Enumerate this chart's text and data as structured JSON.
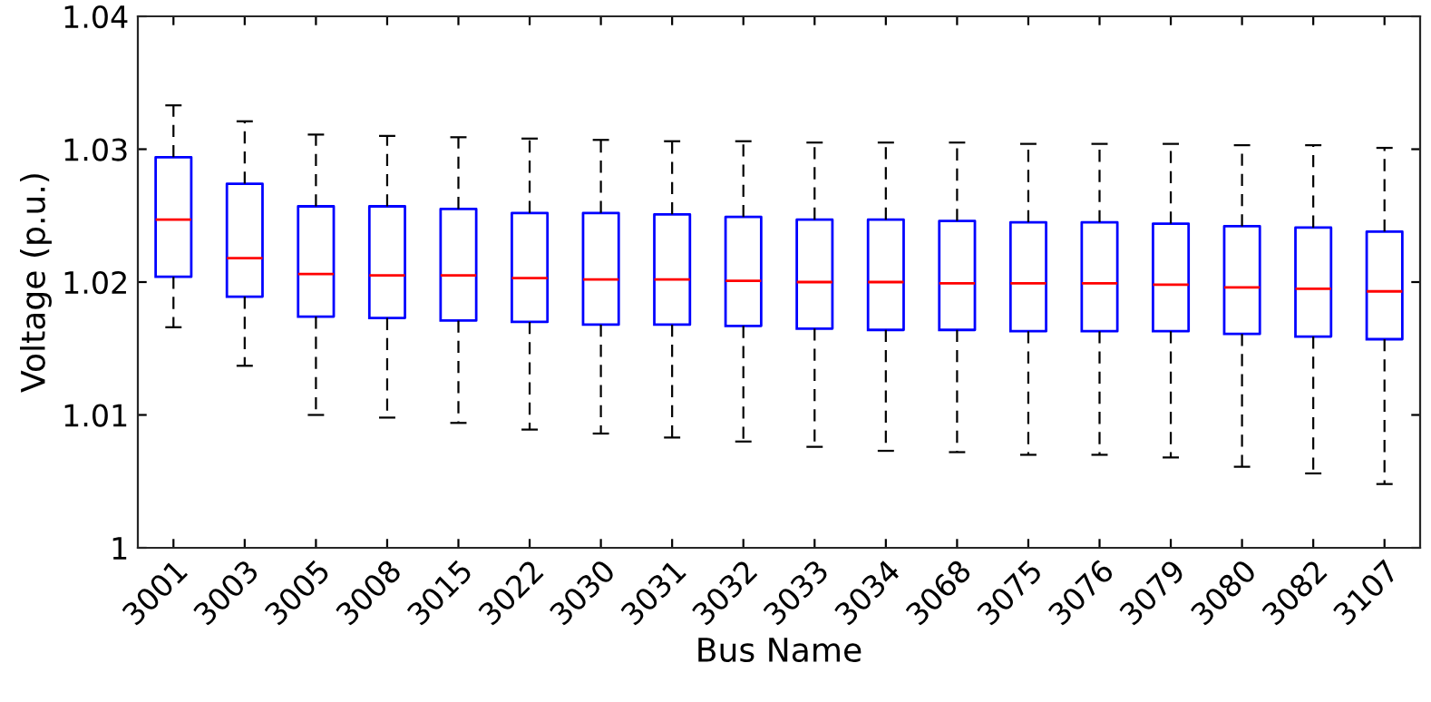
{
  "chart_data": {
    "type": "box",
    "xlabel": "Bus Name",
    "ylabel": "Voltage (p.u.)",
    "categories": [
      "3001",
      "3003",
      "3005",
      "3008",
      "3015",
      "3022",
      "3030",
      "3031",
      "3032",
      "3033",
      "3034",
      "3068",
      "3075",
      "3076",
      "3079",
      "3080",
      "3082",
      "3107"
    ],
    "ylim": [
      1,
      1.04
    ],
    "yticks": [
      1,
      1.01,
      1.02,
      1.03,
      1.04
    ],
    "grid": false,
    "line_style": "dashed",
    "series": [
      {
        "color": "#0000ff",
        "boxes": [
          {
            "low": 1.0166,
            "q1": 1.0204,
            "median": 1.0247,
            "q3": 1.0294,
            "high": 1.0333
          },
          {
            "low": 1.0137,
            "q1": 1.0189,
            "median": 1.0218,
            "q3": 1.0274,
            "high": 1.0321
          },
          {
            "low": 1.01,
            "q1": 1.0174,
            "median": 1.0206,
            "q3": 1.0257,
            "high": 1.0311
          },
          {
            "low": 1.0098,
            "q1": 1.0173,
            "median": 1.0205,
            "q3": 1.0257,
            "high": 1.031
          },
          {
            "low": 1.0094,
            "q1": 1.0171,
            "median": 1.0205,
            "q3": 1.0255,
            "high": 1.0309
          },
          {
            "low": 1.0089,
            "q1": 1.017,
            "median": 1.0203,
            "q3": 1.0252,
            "high": 1.0308
          },
          {
            "low": 1.0086,
            "q1": 1.0168,
            "median": 1.0202,
            "q3": 1.0252,
            "high": 1.0307
          },
          {
            "low": 1.0083,
            "q1": 1.0168,
            "median": 1.0202,
            "q3": 1.0251,
            "high": 1.0306
          },
          {
            "low": 1.008,
            "q1": 1.0167,
            "median": 1.0201,
            "q3": 1.0249,
            "high": 1.0306
          },
          {
            "low": 1.0076,
            "q1": 1.0165,
            "median": 1.02,
            "q3": 1.0247,
            "high": 1.0305
          },
          {
            "low": 1.0073,
            "q1": 1.0164,
            "median": 1.02,
            "q3": 1.0247,
            "high": 1.0305
          },
          {
            "low": 1.0072,
            "q1": 1.0164,
            "median": 1.0199,
            "q3": 1.0246,
            "high": 1.0305
          },
          {
            "low": 1.007,
            "q1": 1.0163,
            "median": 1.0199,
            "q3": 1.0245,
            "high": 1.0304
          },
          {
            "low": 1.007,
            "q1": 1.0163,
            "median": 1.0199,
            "q3": 1.0245,
            "high": 1.0304
          },
          {
            "low": 1.0068,
            "q1": 1.0163,
            "median": 1.0198,
            "q3": 1.0244,
            "high": 1.0304
          },
          {
            "low": 1.0061,
            "q1": 1.0161,
            "median": 1.0196,
            "q3": 1.0242,
            "high": 1.0303
          },
          {
            "low": 1.0056,
            "q1": 1.0159,
            "median": 1.0195,
            "q3": 1.0241,
            "high": 1.0303
          },
          {
            "low": 1.0048,
            "q1": 1.0157,
            "median": 1.0193,
            "q3": 1.0238,
            "high": 1.0301
          }
        ]
      }
    ]
  }
}
